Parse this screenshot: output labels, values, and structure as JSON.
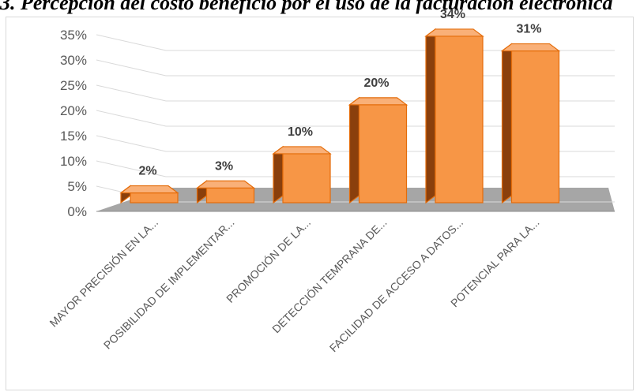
{
  "title": "3. Percepción del costo beneficio por el uso de la facturación electrónica",
  "chart_data": {
    "type": "bar",
    "style": "3d-column",
    "categories": [
      "MAYOR PRECISIÓN EN LA...",
      "POSIBILIDAD DE IMPLEMENTAR...",
      "PROMOCIÓN DE LA...",
      "DETECCIÓN TEMPRANA DE...",
      "FACILIDAD DE ACCESO A DATOS...",
      "POTENCIAL PARA LA..."
    ],
    "values": [
      2,
      3,
      10,
      20,
      34,
      31
    ],
    "data_labels": [
      "2%",
      "3%",
      "10%",
      "20%",
      "34%",
      "31%"
    ],
    "yticks": [
      "0%",
      "5%",
      "10%",
      "15%",
      "20%",
      "25%",
      "30%",
      "35%"
    ],
    "ylim": [
      0,
      35
    ],
    "grid": true,
    "legend": "none",
    "bar_color": "#F79646",
    "bar_edge_color": "#E46C0A",
    "floor_color": "#A6A6A6"
  }
}
